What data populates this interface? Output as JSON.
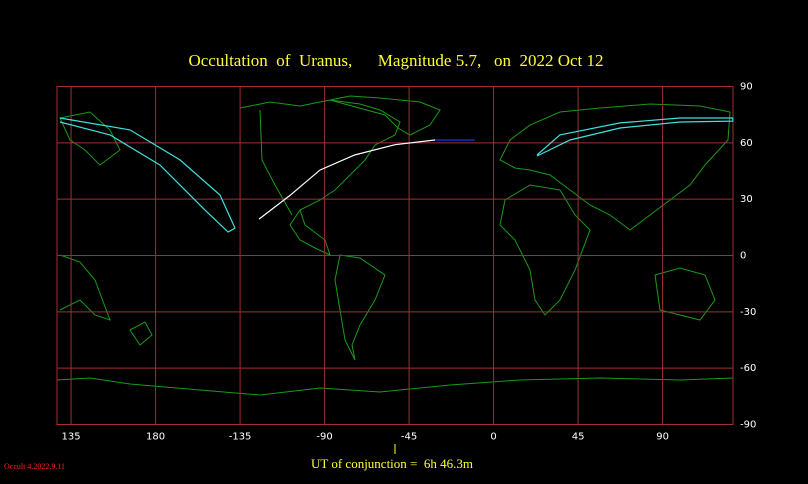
{
  "chart_data": {
    "type": "line",
    "title": "Occultation  of  Uranus,      Magnitude 5.7,   on  2022 Oct 12",
    "footer": "UT of conjunction =  6h 46.3m",
    "version": "Occult 4.2022.9.11",
    "xlim": [
      127.5,
      487.5
    ],
    "ylim": [
      -90,
      90
    ],
    "xticks": [
      135,
      180,
      {
        "value": 225,
        "label": "-135"
      },
      {
        "value": 270,
        "label": "-90"
      },
      {
        "value": 315,
        "label": "-45"
      },
      {
        "value": 360,
        "label": "0"
      },
      {
        "value": 405,
        "label": "45"
      },
      {
        "value": 450,
        "label": "90"
      }
    ],
    "yticks": [
      90,
      60,
      30,
      0,
      -30,
      -60,
      -90
    ],
    "grid": true,
    "grid_color": "#a03030",
    "series": [
      {
        "color": "#ffffff",
        "x": [
          235.1,
          251.6,
          267.5,
          286,
          307.5,
          328.8
        ],
        "values": [
          19.4,
          32,
          45.5,
          53.5,
          59,
          61.5
        ]
      },
      {
        "color": "#2030ff",
        "x": [
          328.8,
          350
        ],
        "values": [
          61.5,
          61.5
        ]
      },
      {
        "color": "#40e0e0",
        "x": [
          129.1,
          166.4,
          193,
          214.3,
          222.3,
          218.6,
          206.3,
          182.3,
          155.7,
          129.1
        ],
        "values": [
          73.2,
          66.9,
          50.9,
          32.2,
          14.6,
          12.5,
          24.2,
          48.2,
          64.2,
          71.1
        ]
      },
      {
        "color": "#40e0e0",
        "x": [
          383.1,
          395.3,
          427.3,
          459.2,
          487.4,
          487.4,
          459.2,
          427.3,
          400.7,
          383.1
        ],
        "values": [
          53.5,
          64.2,
          70.6,
          73.2,
          73.2,
          71.6,
          71.1,
          67.9,
          61.5,
          53
        ]
      }
    ]
  }
}
